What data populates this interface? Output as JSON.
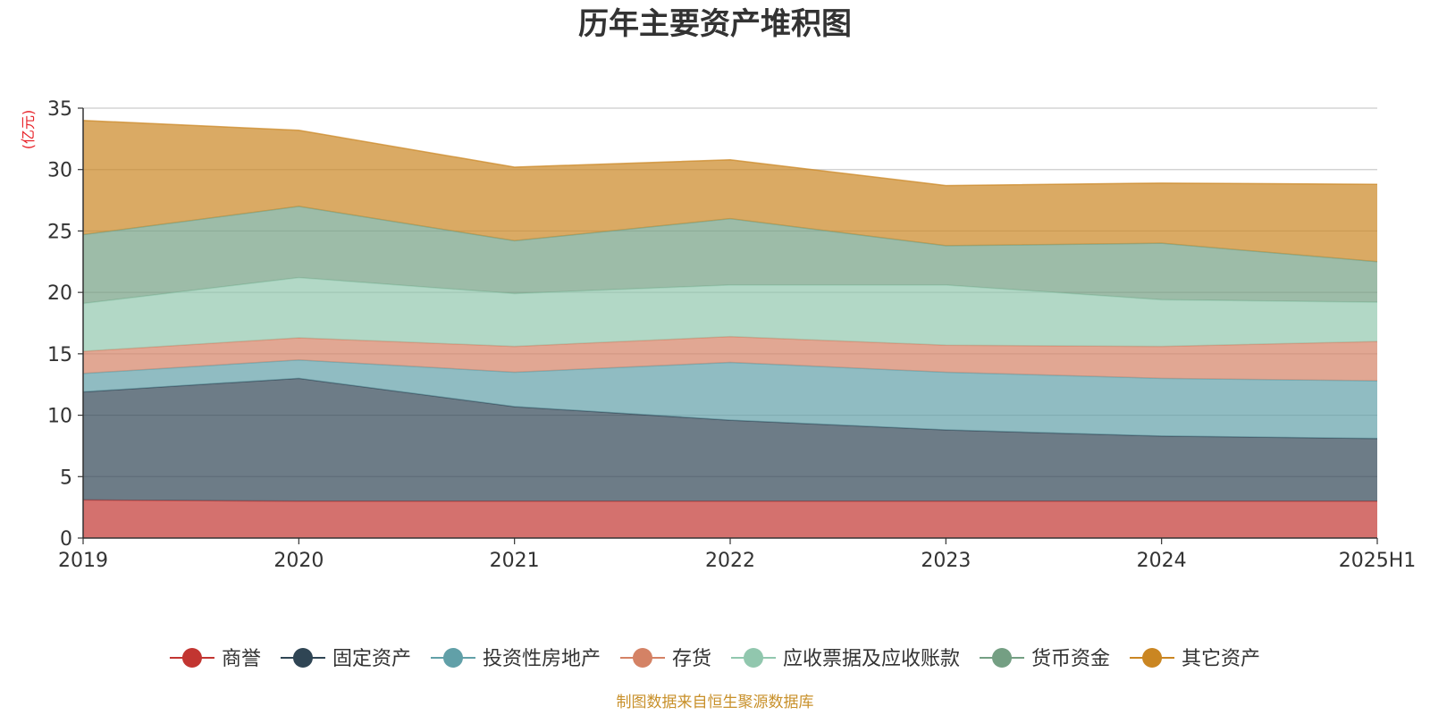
{
  "chart_data": {
    "type": "area",
    "stacked": true,
    "title": "历年主要资产堆积图",
    "unit_label": "(亿元)",
    "x": [
      "2019",
      "2020",
      "2021",
      "2022",
      "2023",
      "2024",
      "2025H1"
    ],
    "ylim": [
      0,
      35
    ],
    "yticks": [
      0,
      5,
      10,
      15,
      20,
      25,
      30,
      35
    ],
    "grid": true,
    "legend_position": "bottom",
    "series": [
      {
        "name": "商誉",
        "color": "#c23531",
        "values": [
          3.1,
          3.0,
          3.0,
          3.0,
          3.0,
          3.0,
          3.0
        ]
      },
      {
        "name": "固定资产",
        "color": "#2f4554",
        "values": [
          8.8,
          10.0,
          7.7,
          6.6,
          5.8,
          5.3,
          5.1
        ]
      },
      {
        "name": "投资性房地产",
        "color": "#61a0a8",
        "values": [
          1.5,
          1.5,
          2.8,
          4.7,
          4.7,
          4.7,
          4.7
        ]
      },
      {
        "name": "存货",
        "color": "#d48265",
        "values": [
          1.8,
          1.8,
          2.1,
          2.1,
          2.2,
          2.6,
          3.2
        ]
      },
      {
        "name": "应收票据及应收账款",
        "color": "#91c7ae",
        "values": [
          3.9,
          4.9,
          4.3,
          4.2,
          4.9,
          3.8,
          3.2
        ]
      },
      {
        "name": "货币资金",
        "color": "#749f83",
        "values": [
          5.6,
          5.8,
          4.3,
          5.4,
          3.2,
          4.6,
          3.3
        ]
      },
      {
        "name": "其它资产",
        "color": "#ca8622",
        "values": [
          9.3,
          6.2,
          6.0,
          4.8,
          4.9,
          4.9,
          6.3
        ]
      }
    ]
  },
  "footer": {
    "source": "制图数据来自恒生聚源数据库"
  }
}
